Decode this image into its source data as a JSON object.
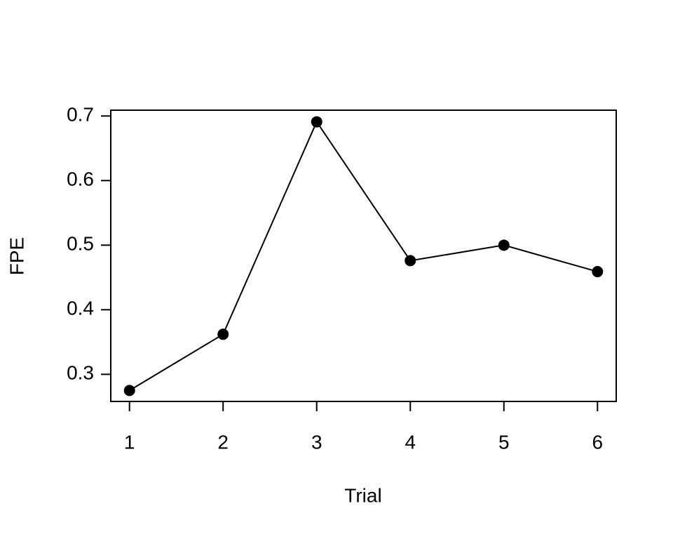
{
  "chart_data": {
    "type": "line",
    "x_label": "Trial",
    "y_label": "FPE",
    "x": [
      1,
      2,
      3,
      4,
      5,
      6
    ],
    "values": [
      0.275,
      0.362,
      0.691,
      0.476,
      0.5,
      0.459
    ],
    "color": "#000000",
    "xlim": [
      0.8,
      6.2
    ],
    "xticks": [
      1,
      2,
      3,
      4,
      5,
      6
    ],
    "ylim": [
      0.258,
      0.709
    ],
    "yticks": [
      0.3,
      0.4,
      0.5,
      0.6,
      0.7
    ],
    "grid": false
  }
}
